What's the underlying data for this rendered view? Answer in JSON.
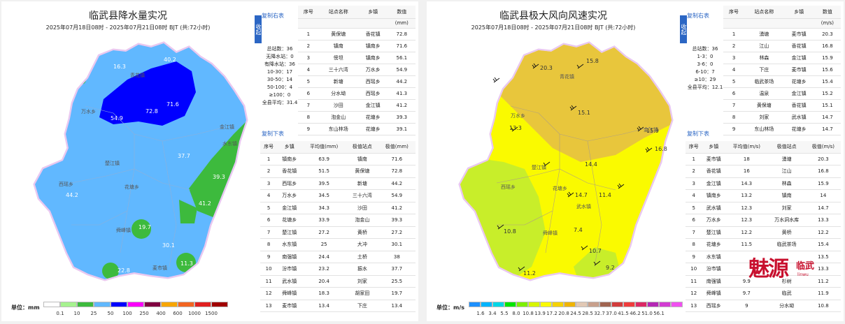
{
  "left": {
    "title": "临武县降水量实况",
    "subtitle": "2025年07月18日08时 - 2025年07月21日08时 BJT (共:72小时)",
    "copy_right": "复制右表",
    "copy_bottom": "复制下表",
    "collapse": "收起",
    "stats": [
      "总站数：36",
      "无降水站：0",
      "有降水站：36",
      "10-30：17",
      "30-50：14",
      "50-100：4",
      "≥100：0",
      "全县平均：31.4"
    ],
    "legend": {
      "label": "单位：mm",
      "colors": [
        "#ffffff",
        "#a6f28f",
        "#3dba3d",
        "#61b8ff",
        "#0000ff",
        "#fa00fa",
        "#800040",
        "#f7a600",
        "#f26522",
        "#e02020",
        "#a00000"
      ],
      "ticks": [
        "0.1",
        "10",
        "25",
        "50",
        "100",
        "250",
        "400",
        "600",
        "1000",
        "1500"
      ]
    },
    "station_table": {
      "headers": [
        "序号",
        "站点名称",
        "乡镇",
        "数值"
      ],
      "unit": "(mm)",
      "rows": [
        [
          "1",
          "黄保塘",
          "香花镇",
          "72.8"
        ],
        [
          "2",
          "镇南",
          "镇南乡",
          "71.6"
        ],
        [
          "3",
          "傍坦",
          "镇南乡",
          "56.1"
        ],
        [
          "4",
          "三十六湾",
          "万水乡",
          "54.9"
        ],
        [
          "5",
          "新塘",
          "西瑶乡",
          "44.2"
        ],
        [
          "6",
          "分水坳",
          "西瑶乡",
          "41.3"
        ],
        [
          "7",
          "沙田",
          "金江镇",
          "41.2"
        ],
        [
          "8",
          "泡金山",
          "花塘乡",
          "39.3"
        ],
        [
          "9",
          "东山林场",
          "花塘乡",
          "39.1"
        ]
      ]
    },
    "town_table": {
      "headers": [
        "序号",
        "乡镇",
        "平均值(mm)",
        "极值站点",
        "极值(mm)"
      ],
      "rows": [
        [
          "1",
          "镇南乡",
          "63.9",
          "镇南",
          "71.6"
        ],
        [
          "2",
          "香花镇",
          "51.5",
          "黄保塘",
          "72.8"
        ],
        [
          "3",
          "西瑶乡",
          "39.5",
          "新塘",
          "44.2"
        ],
        [
          "4",
          "万水乡",
          "34.5",
          "三十六湾",
          "54.9"
        ],
        [
          "5",
          "金江镇",
          "34.3",
          "沙田",
          "41.2"
        ],
        [
          "6",
          "花塘乡",
          "33.9",
          "泡金山",
          "39.3"
        ],
        [
          "7",
          "楚江镇",
          "27.2",
          "黄桥",
          "27.2"
        ],
        [
          "8",
          "水东镇",
          "25",
          "大冲",
          "30.1"
        ],
        [
          "9",
          "南强镇",
          "24.4",
          "土桥",
          "38"
        ],
        [
          "10",
          "汾市镇",
          "23.2",
          "振水",
          "37.7"
        ],
        [
          "11",
          "武水镇",
          "20.4",
          "刘家",
          "25.5"
        ],
        [
          "12",
          "舜峰镇",
          "18.3",
          "胡家田",
          "19.7"
        ],
        [
          "13",
          "麦市镇",
          "13.4",
          "下庄",
          "13.4"
        ]
      ]
    },
    "map_values": [
      "16.3",
      "40.2",
      "72.8",
      "71.6",
      "54.9",
      "37.7",
      "39.3",
      "41.2",
      "44.2",
      "19.7",
      "30.1",
      "22.8",
      "11.3"
    ],
    "map_labels": [
      "青花镇",
      "万水乡",
      "西瑶乡",
      "楚江镇",
      "花塘乡",
      "舜峰镇",
      "麦市镇",
      "金江镇",
      "水东镇"
    ]
  },
  "right": {
    "title": "临武县极大风向风速实况",
    "subtitle": "2025年07月18日08时 - 2025年07月21日08时 BJT (共:72小时)",
    "copy_right": "复制右表",
    "copy_bottom": "复制下表",
    "collapse": "收起",
    "stats": [
      "总站数：36",
      "1-3：0",
      "3-6：0",
      "6-10：7",
      "≥10：29",
      "全县平均：12.1"
    ],
    "legend": {
      "label": "单位：m/s",
      "colors": [
        "#1e90ff",
        "#00b4ff",
        "#00d7e6",
        "#00e600",
        "#7df000",
        "#d7f500",
        "#fafa00",
        "#f5d200",
        "#f0b400",
        "#e1c8b4",
        "#c8a08c",
        "#a06450",
        "#d23c3c",
        "#f03c3c",
        "#dc2864",
        "#b428b4",
        "#d23cd2",
        "#f050f0"
      ],
      "ticks": [
        "1.6",
        "3.4",
        "5.5",
        "8.0",
        "10.8",
        "13.9",
        "17.2",
        "20.8",
        "24.5",
        "28.5",
        "32.7",
        "37.0",
        "41.5",
        "46.2",
        "51.0",
        "56.1"
      ]
    },
    "station_table": {
      "headers": [
        "序号",
        "站点名称",
        "乡镇",
        "数值"
      ],
      "unit": "(m/s)",
      "rows": [
        [
          "1",
          "湧塘",
          "麦市镇",
          "20.3"
        ],
        [
          "2",
          "江山",
          "香花镇",
          "16.8"
        ],
        [
          "3",
          "林森",
          "金江镇",
          "15.9"
        ],
        [
          "4",
          "下庄",
          "麦市镇",
          "15.6"
        ],
        [
          "5",
          "临武茶场",
          "花塘乡",
          "15.4"
        ],
        [
          "6",
          "温泉",
          "金江镇",
          "15.2"
        ],
        [
          "7",
          "黄保塘",
          "香花镇",
          "15.1"
        ],
        [
          "8",
          "刘家",
          "武水镇",
          "14.7"
        ],
        [
          "9",
          "东山林场",
          "花塘乡",
          "14.7"
        ]
      ]
    },
    "town_table": {
      "headers": [
        "序号",
        "乡镇",
        "平均值(m/s)",
        "极值站点",
        "极值(m/s)"
      ],
      "rows": [
        [
          "1",
          "麦市镇",
          "18",
          "湧塘",
          "20.3"
        ],
        [
          "2",
          "香花镇",
          "16",
          "江山",
          "16.8"
        ],
        [
          "3",
          "金江镇",
          "14.3",
          "林森",
          "15.9"
        ],
        [
          "4",
          "镇南乡",
          "13.2",
          "镇南",
          "14"
        ],
        [
          "5",
          "武水镇",
          "12.3",
          "刘家",
          "14.7"
        ],
        [
          "6",
          "万水乡",
          "12.3",
          "万水洞水库",
          "13.3"
        ],
        [
          "7",
          "楚江镇",
          "12.2",
          "黄桥",
          "12.2"
        ],
        [
          "8",
          "花塘乡",
          "11.5",
          "临武茶场",
          "15.4"
        ],
        [
          "9",
          "水东镇",
          "",
          "",
          "13.5"
        ],
        [
          "10",
          "汾市镇",
          "",
          "",
          "13.3"
        ],
        [
          "11",
          "南强镇",
          "9.9",
          "杉树",
          "11.2"
        ],
        [
          "12",
          "舜峰镇",
          "9.7",
          "临武",
          "11.9"
        ],
        [
          "13",
          "西瑶乡",
          "9",
          "分水坳",
          "10.8"
        ]
      ]
    },
    "map_values": [
      "20.3",
      "15.8",
      "15.1",
      "16.8",
      "13.3",
      "14.4",
      "14.7",
      "11.4",
      "10.8",
      "7.4",
      "10.7",
      "9.2",
      "11.2",
      "15.9"
    ],
    "map_labels": [
      "青花镇",
      "万水乡",
      "西瑶乡",
      "楚江镇",
      "花塘乡",
      "舜峰镇",
      "武水镇",
      "金江镇"
    ]
  },
  "logo": {
    "big": "魅源",
    "small": "临武",
    "en": "linwu"
  }
}
